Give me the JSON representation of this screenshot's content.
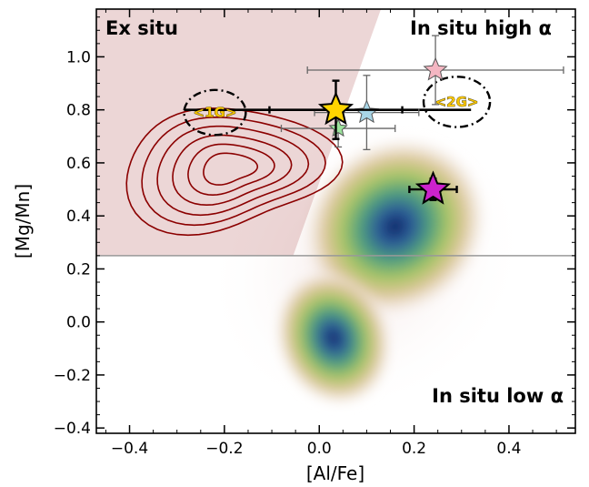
{
  "chart_data": {
    "type": "scatter",
    "xlabel": "[Al/Fe]",
    "ylabel": "[Mg/Mn]",
    "xlim": [
      -0.47,
      0.54
    ],
    "ylim": [
      -0.42,
      1.18
    ],
    "xticks": [
      -0.4,
      -0.2,
      0.0,
      0.2,
      0.4
    ],
    "yticks": [
      -0.4,
      -0.2,
      0.0,
      0.2,
      0.4,
      0.6,
      0.8,
      1.0
    ],
    "xtick_labels": [
      "−0.4",
      "−0.2",
      "0.0",
      "0.2",
      "0.4"
    ],
    "ytick_labels": [
      "−0.4",
      "−0.2",
      "0.0",
      "0.2",
      "0.4",
      "0.6",
      "0.8",
      "1.0"
    ],
    "regions": [
      {
        "label": "Ex situ",
        "color": "#c98a8a"
      },
      {
        "label": "In situ high α"
      },
      {
        "label": "In situ low α"
      }
    ],
    "divider": {
      "y": 0.25,
      "color": "#999999"
    },
    "points": [
      {
        "marker": "star",
        "color": "#ffd400",
        "x": 0.035,
        "y": 0.8,
        "xerr": [
          0.14,
          0.14
        ],
        "yerr": [
          0.11,
          0.11
        ],
        "size": "large"
      },
      {
        "marker": "star",
        "color": "#a8d5e6",
        "x": 0.1,
        "y": 0.79,
        "xerr": [
          0.11,
          0.11
        ],
        "yerr": [
          0.14,
          0.14
        ],
        "size": "medium"
      },
      {
        "marker": "star",
        "color": "#9be39b",
        "x": 0.04,
        "y": 0.73,
        "xerr": [
          0.12,
          0.12
        ],
        "yerr": [
          0.07,
          0.07
        ],
        "size": "small"
      },
      {
        "marker": "star",
        "color": "#f4b6c2",
        "x": 0.245,
        "y": 0.95,
        "xerr": [
          0.27,
          0.27
        ],
        "yerr": [
          0.13,
          0.13
        ],
        "size": "medium"
      },
      {
        "marker": "star",
        "color": "#cc22cc",
        "x": 0.24,
        "y": 0.5,
        "xerr": [
          0.05,
          0.05
        ],
        "yerr": [
          0.04,
          0.04
        ],
        "size": "large"
      }
    ],
    "generation_markers": [
      {
        "label": "<1G>",
        "x": -0.22,
        "y": 0.79,
        "rx": 0.065,
        "ry": 0.085
      },
      {
        "label": "<2G>",
        "x": 0.29,
        "y": 0.83,
        "rx": 0.07,
        "ry": 0.095
      }
    ],
    "mean_line": {
      "x0": -0.285,
      "x1": 0.32,
      "y": 0.8
    },
    "ex_situ_contours": {
      "color": "#8b0000",
      "levels": 6
    },
    "density_colormap": [
      "#ffffff",
      "#f3e4e0",
      "#d7c08c",
      "#a9c665",
      "#4f9f7f",
      "#2a5a99",
      "#0b1f5e"
    ]
  }
}
